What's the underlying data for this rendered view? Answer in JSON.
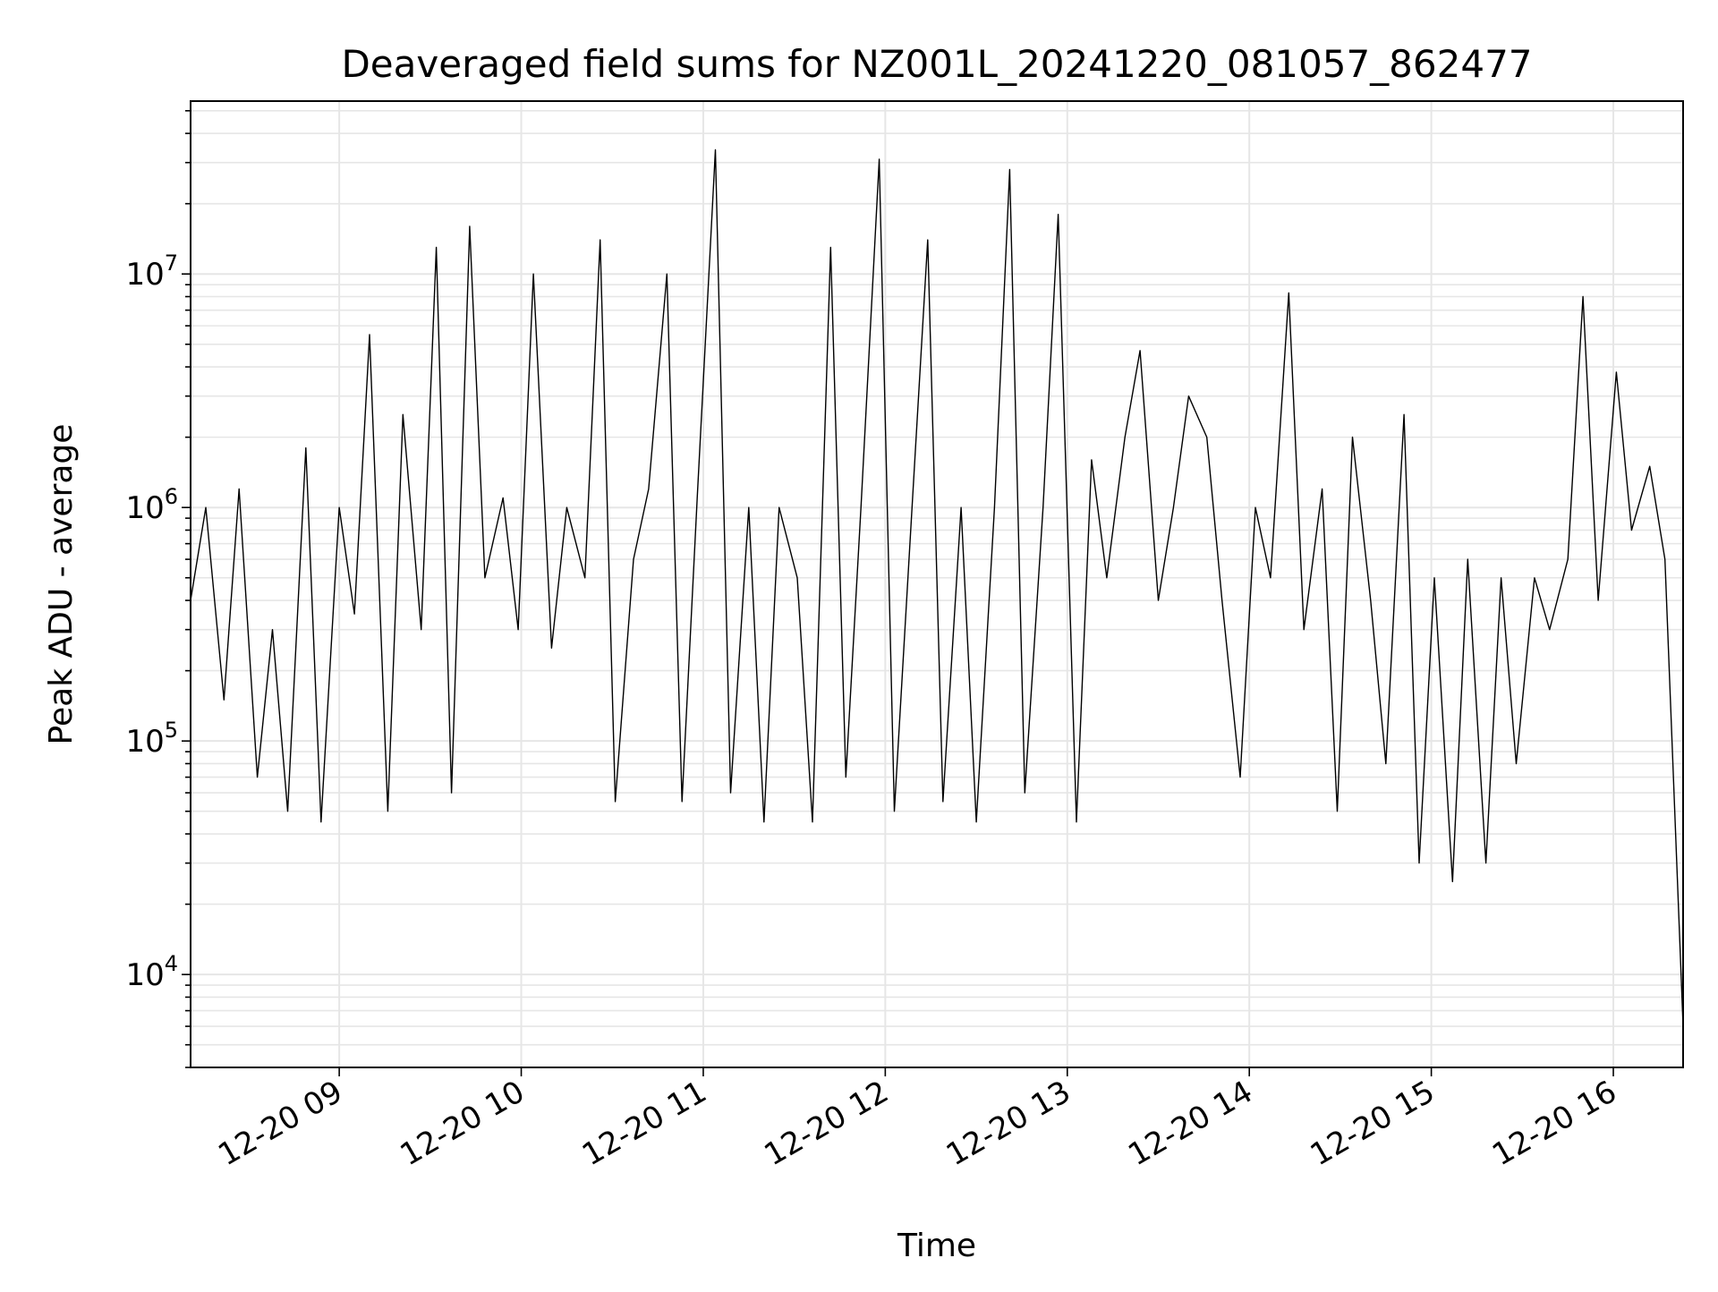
{
  "chart_data": {
    "type": "line",
    "title": "Deaveraged field sums for NZ001L_20241220_081057_862477",
    "xlabel": "Time",
    "ylabel": "Peak ADU - average",
    "yscale": "log",
    "xlim": [
      "2024-12-20 08:11",
      "2024-12-20 16:23"
    ],
    "ylim": [
      4000,
      55000000
    ],
    "grid": true,
    "line_color": "#000000",
    "grid_color": "#e6e6e6",
    "x_ticks": [
      {
        "t": "2024-12-20 09:00",
        "label": "12-20 09"
      },
      {
        "t": "2024-12-20 10:00",
        "label": "12-20 10"
      },
      {
        "t": "2024-12-20 11:00",
        "label": "12-20 11"
      },
      {
        "t": "2024-12-20 12:00",
        "label": "12-20 12"
      },
      {
        "t": "2024-12-20 13:00",
        "label": "12-20 13"
      },
      {
        "t": "2024-12-20 14:00",
        "label": "12-20 14"
      },
      {
        "t": "2024-12-20 15:00",
        "label": "12-20 15"
      },
      {
        "t": "2024-12-20 16:00",
        "label": "12-20 16"
      }
    ],
    "y_ticks": [
      {
        "value": 10000,
        "base": "10",
        "exp": "4"
      },
      {
        "value": 100000,
        "base": "10",
        "exp": "5"
      },
      {
        "value": 1000000,
        "base": "10",
        "exp": "6"
      },
      {
        "value": 10000000,
        "base": "10",
        "exp": "7"
      }
    ],
    "series": [
      {
        "name": "",
        "x": [
          "2024-12-20 08:11",
          "2024-12-20 08:16",
          "2024-12-20 08:22",
          "2024-12-20 08:27",
          "2024-12-20 08:33",
          "2024-12-20 08:38",
          "2024-12-20 08:43",
          "2024-12-20 08:49",
          "2024-12-20 08:54",
          "2024-12-20 09:00",
          "2024-12-20 09:05",
          "2024-12-20 09:10",
          "2024-12-20 09:16",
          "2024-12-20 09:21",
          "2024-12-20 09:27",
          "2024-12-20 09:32",
          "2024-12-20 09:37",
          "2024-12-20 09:43",
          "2024-12-20 09:48",
          "2024-12-20 09:54",
          "2024-12-20 09:59",
          "2024-12-20 10:04",
          "2024-12-20 10:10",
          "2024-12-20 10:15",
          "2024-12-20 10:21",
          "2024-12-20 10:26",
          "2024-12-20 10:31",
          "2024-12-20 10:37",
          "2024-12-20 10:42",
          "2024-12-20 10:48",
          "2024-12-20 10:53",
          "2024-12-20 10:58",
          "2024-12-20 11:04",
          "2024-12-20 11:09",
          "2024-12-20 11:15",
          "2024-12-20 11:20",
          "2024-12-20 11:25",
          "2024-12-20 11:31",
          "2024-12-20 11:36",
          "2024-12-20 11:42",
          "2024-12-20 11:47",
          "2024-12-20 11:52",
          "2024-12-20 11:58",
          "2024-12-20 12:03",
          "2024-12-20 12:09",
          "2024-12-20 12:14",
          "2024-12-20 12:19",
          "2024-12-20 12:25",
          "2024-12-20 12:30",
          "2024-12-20 12:36",
          "2024-12-20 12:41",
          "2024-12-20 12:46",
          "2024-12-20 12:52",
          "2024-12-20 12:57",
          "2024-12-20 13:03",
          "2024-12-20 13:08",
          "2024-12-20 13:13",
          "2024-12-20 13:19",
          "2024-12-20 13:24",
          "2024-12-20 13:30",
          "2024-12-20 13:35",
          "2024-12-20 13:40",
          "2024-12-20 13:46",
          "2024-12-20 13:51",
          "2024-12-20 13:57",
          "2024-12-20 14:02",
          "2024-12-20 14:07",
          "2024-12-20 14:13",
          "2024-12-20 14:18",
          "2024-12-20 14:24",
          "2024-12-20 14:29",
          "2024-12-20 14:34",
          "2024-12-20 14:40",
          "2024-12-20 14:45",
          "2024-12-20 14:51",
          "2024-12-20 14:56",
          "2024-12-20 15:01",
          "2024-12-20 15:07",
          "2024-12-20 15:12",
          "2024-12-20 15:18",
          "2024-12-20 15:23",
          "2024-12-20 15:28",
          "2024-12-20 15:34",
          "2024-12-20 15:39",
          "2024-12-20 15:45",
          "2024-12-20 15:50",
          "2024-12-20 15:55",
          "2024-12-20 16:01",
          "2024-12-20 16:06",
          "2024-12-20 16:12",
          "2024-12-20 16:17",
          "2024-12-20 16:23"
        ],
        "y": [
          400000,
          1000000,
          150000,
          1200000,
          70000,
          300000,
          50000,
          1800000,
          45000,
          1000000,
          350000,
          5500000,
          50000,
          2500000,
          300000,
          13000000,
          60000,
          16000000,
          500000,
          1100000,
          300000,
          10000000,
          250000,
          1000000,
          500000,
          14000000,
          55000,
          600000,
          1200000,
          10000000,
          55000,
          1100000,
          34000000,
          60000,
          1000000,
          45000,
          1000000,
          500000,
          45000,
          13000000,
          70000,
          1000000,
          31000000,
          50000,
          1100000,
          14000000,
          55000,
          1000000,
          45000,
          1000000,
          28000000,
          60000,
          1000000,
          18000000,
          45000,
          1600000,
          500000,
          2000000,
          4700000,
          400000,
          1000000,
          3000000,
          2000000,
          400000,
          70000,
          1000000,
          500000,
          8300000,
          300000,
          1200000,
          50000,
          2000000,
          400000,
          80000,
          2500000,
          30000,
          500000,
          25000,
          600000,
          30000,
          500000,
          80000,
          500000,
          300000,
          600000,
          8000000,
          400000,
          3800000,
          800000,
          1500000,
          600000,
          6000
        ]
      }
    ]
  }
}
